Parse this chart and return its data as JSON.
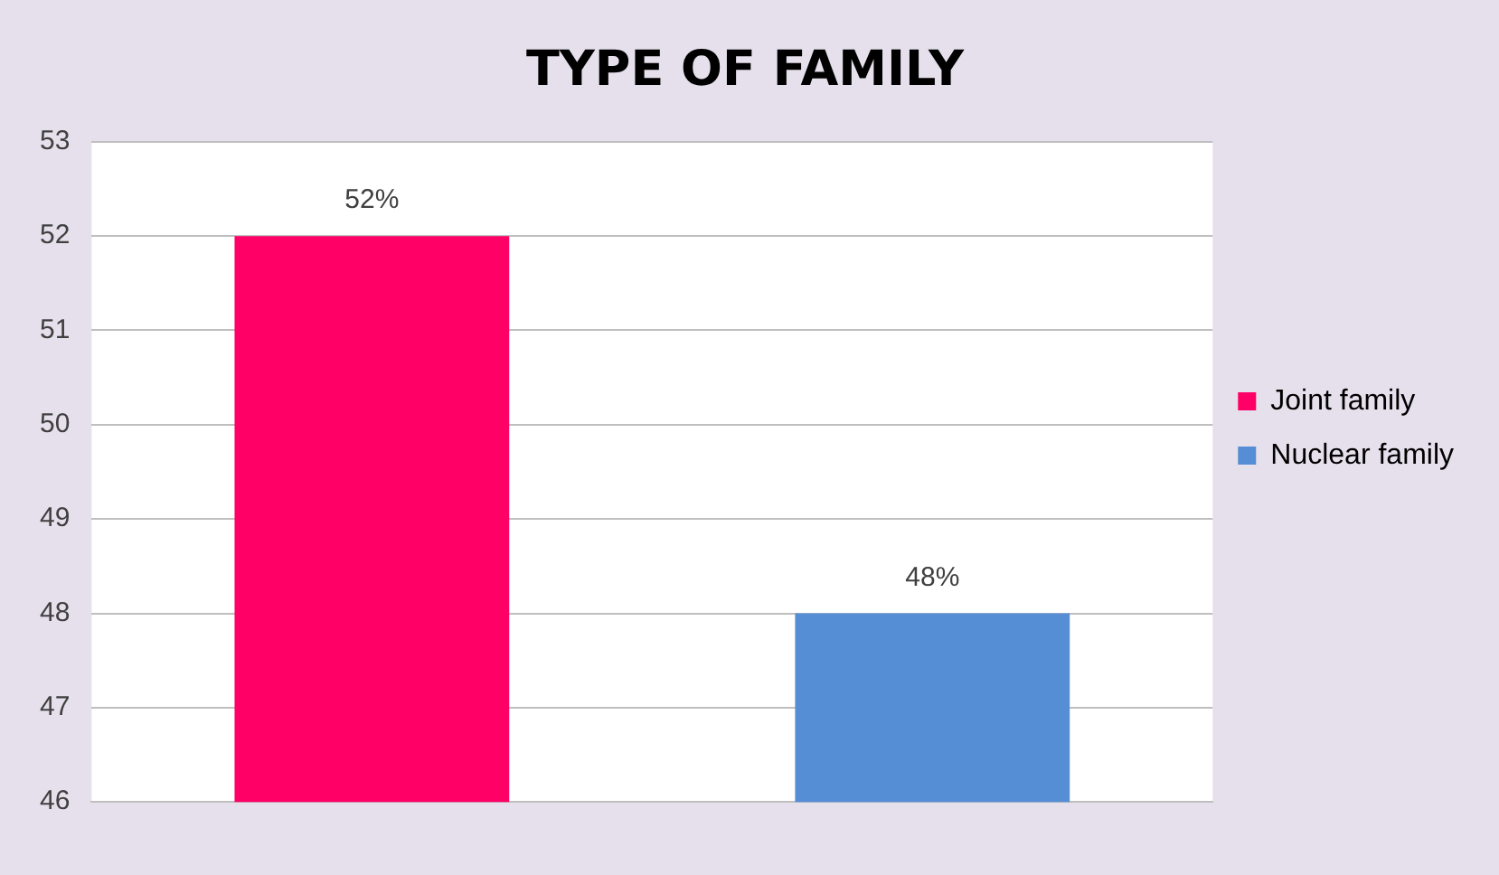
{
  "chart_data": {
    "type": "bar",
    "title": "TYPE OF FAMILY",
    "categories": [
      null,
      null
    ],
    "series": [
      {
        "name": "Joint family",
        "color": "#ff0066",
        "values": [
          52,
          null
        ],
        "value_labels": [
          "52%",
          null
        ]
      },
      {
        "name": "Nuclear family",
        "color": "#558ed5",
        "values": [
          null,
          48
        ],
        "value_labels": [
          null,
          "48%"
        ]
      }
    ],
    "ylim": [
      46,
      53
    ],
    "yticks": [
      46,
      47,
      48,
      49,
      50,
      51,
      52,
      53
    ],
    "grid": "y",
    "legend": "right"
  }
}
